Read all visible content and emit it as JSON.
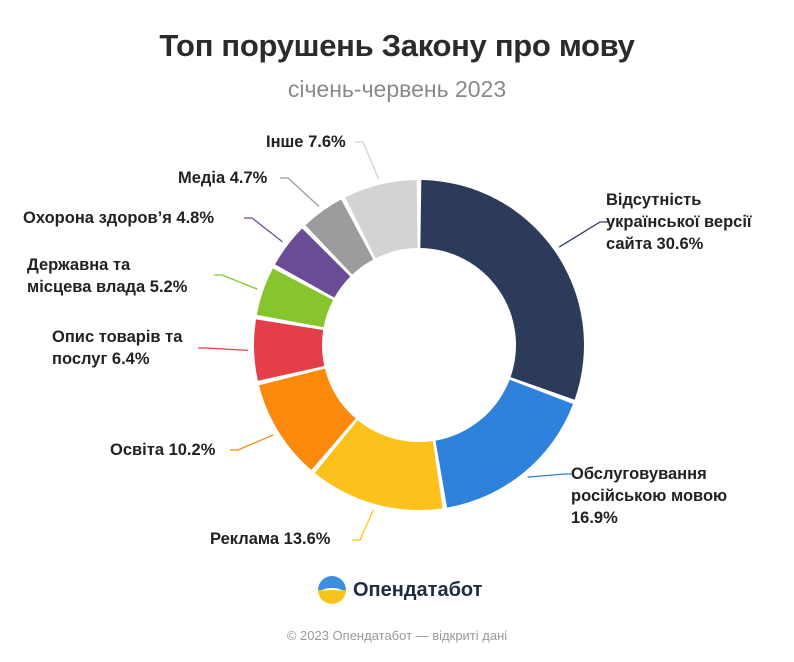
{
  "header": {
    "title": "Топ порушень Закону про мову",
    "subtitle": "січень-червень 2023"
  },
  "brand": {
    "name": "Опендатабот",
    "logo_icon": "opendatabot-logo-icon"
  },
  "footer": {
    "text": "© 2023 Опендатабот — відкриті дані"
  },
  "chart_data": {
    "type": "pie",
    "donut": true,
    "unit": "%",
    "slices": [
      {
        "label": "Відсутність української версії сайта 30.6%",
        "value": 30.6,
        "color": "#2d3b5b"
      },
      {
        "label": "Обслуговування російською мовою 16.9%",
        "value": 16.9,
        "color": "#2f82dc"
      },
      {
        "label": "Реклама 13.6%",
        "value": 13.6,
        "color": "#fcc21b"
      },
      {
        "label": "Освіта 10.2%",
        "value": 10.2,
        "color": "#fb8a0c"
      },
      {
        "label": "Опис товарів та послуг 6.4%",
        "value": 6.4,
        "color": "#e43e48"
      },
      {
        "label": "Державна та місцева влада 5.2%",
        "value": 5.2,
        "color": "#86c52b"
      },
      {
        "label": "Охорона здоров’я 4.8%",
        "value": 4.8,
        "color": "#6a4c96"
      },
      {
        "label": "Медіа 4.7%",
        "value": 4.7,
        "color": "#9c9c9c"
      },
      {
        "label": "Інше 7.6%",
        "value": 7.6,
        "color": "#d3d3d3"
      }
    ],
    "label_lines": [
      [
        "Відсутність",
        "української версії",
        "сайта 30.6%"
      ],
      [
        "Обслуговування",
        "російською мовою",
        "16.9%"
      ],
      [
        "Реклама 13.6%"
      ],
      [
        "Освіта 10.2%"
      ],
      [
        "Опис товарів та",
        "послуг 6.4%"
      ],
      [
        "Державна та",
        "місцева влада 5.2%"
      ],
      [
        "Охорона здоров’я 4.8%"
      ],
      [
        "Медіа 4.7%"
      ],
      [
        "Інше 7.6%"
      ]
    ]
  }
}
